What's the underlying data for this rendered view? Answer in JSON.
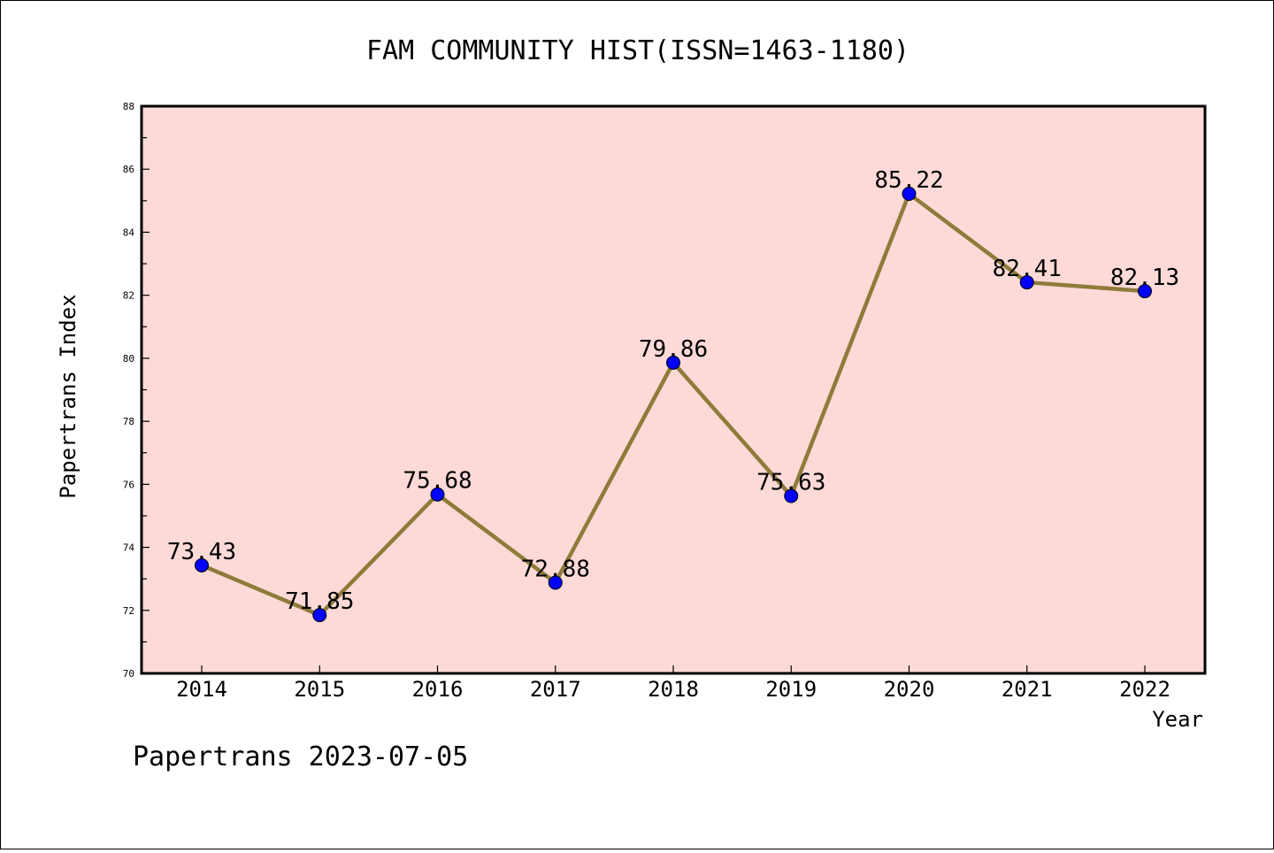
{
  "chart_data": {
    "type": "line",
    "title": "FAM COMMUNITY HIST(ISSN=1463-1180)",
    "xlabel": "Year",
    "ylabel": "Papertrans Index",
    "categories": [
      "2014",
      "2015",
      "2016",
      "2017",
      "2018",
      "2019",
      "2020",
      "2021",
      "2022"
    ],
    "values": [
      73.43,
      71.85,
      75.68,
      72.88,
      79.86,
      75.63,
      85.22,
      82.41,
      82.13
    ],
    "data_labels": [
      "73.43",
      "71.85",
      "75.68",
      "72.88",
      "79.86",
      "75.63",
      "85.22",
      "82.41",
      "82.13"
    ],
    "ylim": [
      70,
      88
    ],
    "yticks": [
      "70",
      "72",
      "74",
      "76",
      "78",
      "80",
      "82",
      "84",
      "86",
      "88"
    ],
    "grid": false,
    "legend": "none",
    "colors": {
      "plot_background": "#fddad7",
      "line": "#8f7b3a",
      "marker": "#0000ff"
    }
  },
  "footer": "Papertrans 2023-07-05"
}
